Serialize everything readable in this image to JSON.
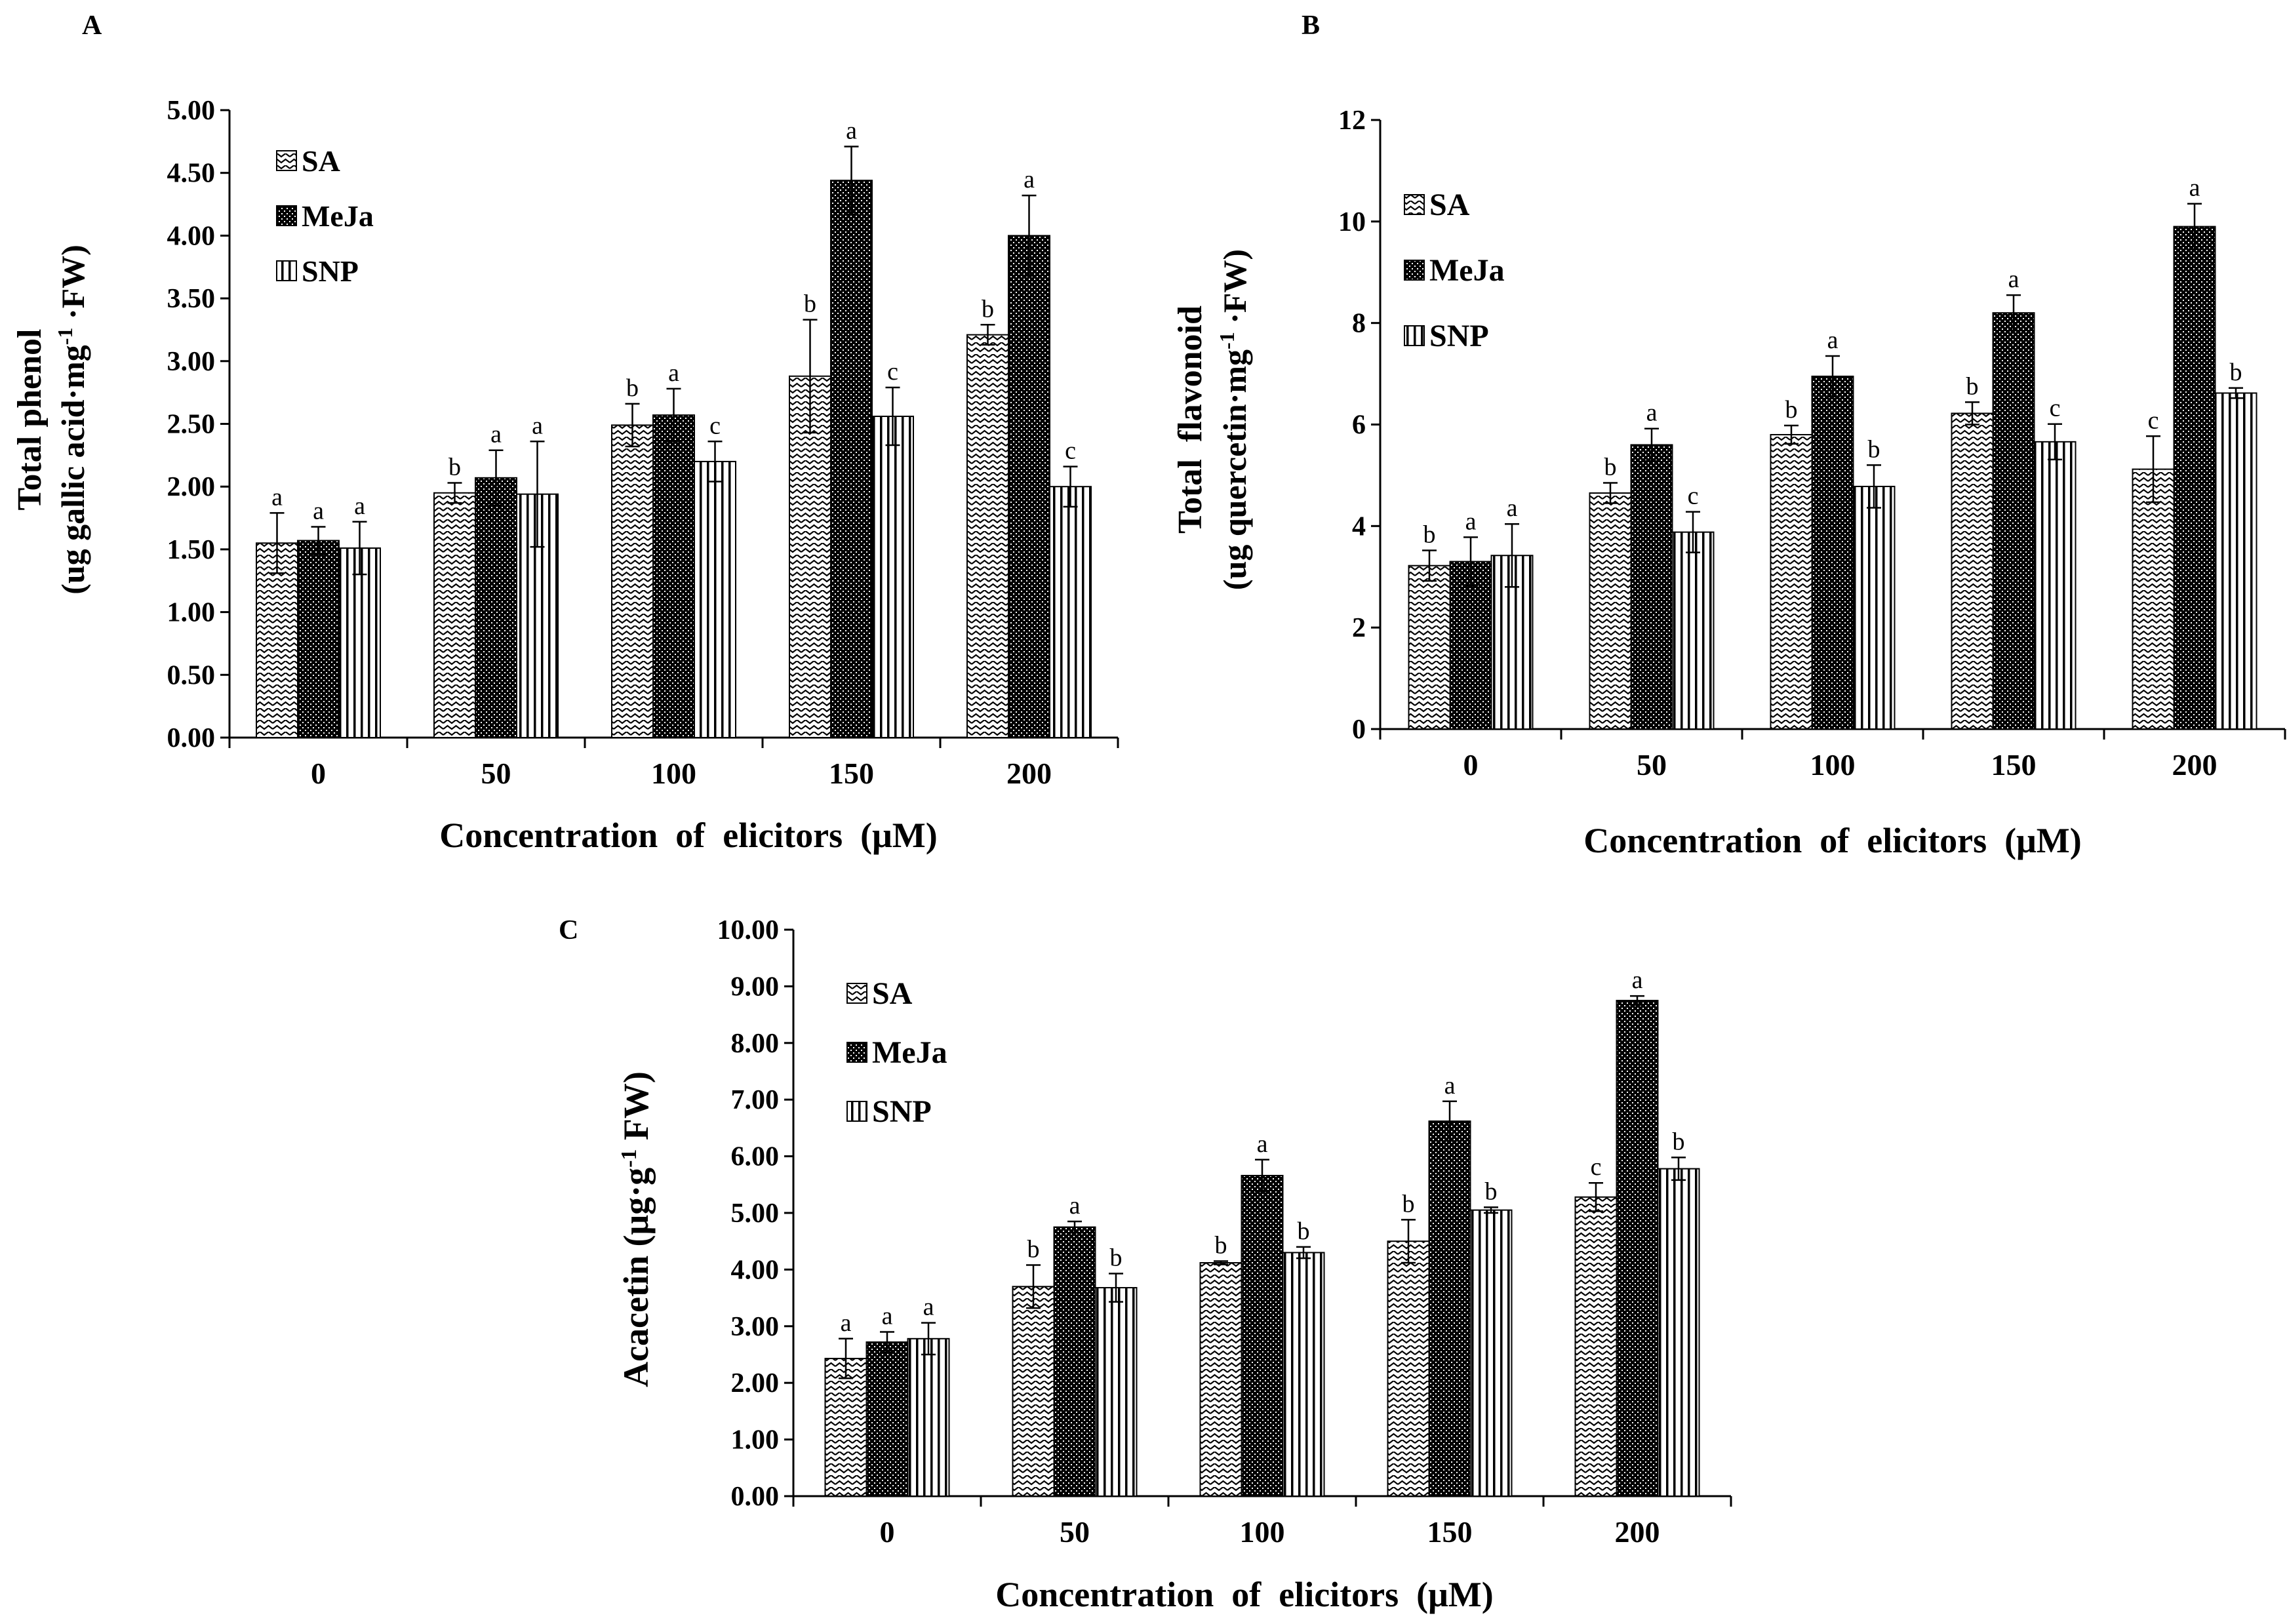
{
  "chart_data": [
    {
      "type": "bar",
      "panel_label": "A",
      "categories": [
        "0",
        "50",
        "100",
        "150",
        "200"
      ],
      "series": [
        {
          "name": "SA",
          "values": [
            1.55,
            1.95,
            2.49,
            2.88,
            3.21
          ],
          "errors": [
            0.24,
            0.08,
            0.17,
            0.45,
            0.08
          ],
          "letters": [
            "a",
            "b",
            "b",
            "b",
            "b"
          ]
        },
        {
          "name": "MeJa",
          "values": [
            1.57,
            2.07,
            2.57,
            4.44,
            4.0
          ],
          "errors": [
            0.11,
            0.22,
            0.21,
            0.27,
            0.32
          ],
          "letters": [
            "a",
            "a",
            "a",
            "a",
            "a"
          ]
        },
        {
          "name": "SNP",
          "values": [
            1.51,
            1.94,
            2.2,
            2.56,
            2.0
          ],
          "errors": [
            0.21,
            0.42,
            0.16,
            0.23,
            0.16
          ],
          "letters": [
            "a",
            "a",
            "c",
            "c",
            "c"
          ]
        }
      ],
      "yticks": [
        "0.00",
        "0.50",
        "1.00",
        "1.50",
        "2.00",
        "2.50",
        "3.00",
        "3.50",
        "4.00",
        "4.50",
        "5.00"
      ],
      "ylim": [
        0,
        5
      ],
      "ylabel_line1": "Total phenol",
      "ylabel_line2_prefix": "(ug gallic acid·mg",
      "ylabel_sup": "-1",
      "ylabel_line2_suffix": " ·FW)",
      "xlabel": "Concentration  of  elicitors  (μM)",
      "legend": [
        "SA",
        "MeJa",
        "SNP"
      ]
    },
    {
      "type": "bar",
      "panel_label": "B",
      "categories": [
        "0",
        "50",
        "100",
        "150",
        "200"
      ],
      "series": [
        {
          "name": "SA",
          "values": [
            3.22,
            4.65,
            5.8,
            6.22,
            5.12
          ],
          "errors": [
            0.3,
            0.2,
            0.18,
            0.22,
            0.65
          ],
          "letters": [
            "b",
            "b",
            "b",
            "b",
            "c"
          ]
        },
        {
          "name": "MeJa",
          "values": [
            3.3,
            5.6,
            6.95,
            8.2,
            9.9
          ],
          "errors": [
            0.48,
            0.32,
            0.4,
            0.35,
            0.45
          ],
          "letters": [
            "a",
            "a",
            "a",
            "a",
            "a"
          ]
        },
        {
          "name": "SNP",
          "values": [
            3.42,
            3.88,
            4.78,
            5.66,
            6.62
          ],
          "errors": [
            0.62,
            0.4,
            0.42,
            0.35,
            0.1
          ],
          "letters": [
            "a",
            "c",
            "b",
            "c",
            "b"
          ]
        }
      ],
      "yticks": [
        "0",
        "2",
        "4",
        "6",
        "8",
        "10",
        "12"
      ],
      "ylim": [
        0,
        12
      ],
      "ylabel_line1": "Total  flavonoid",
      "ylabel_line2_prefix": "(ug quercetin·mg",
      "ylabel_sup": "-1",
      "ylabel_line2_suffix": " ·FW)",
      "xlabel": "Concentration  of  elicitors  (μM)",
      "legend": [
        "SA",
        "MeJa",
        "SNP"
      ]
    },
    {
      "type": "bar",
      "panel_label": "C",
      "categories": [
        "0",
        "50",
        "100",
        "150",
        "200"
      ],
      "series": [
        {
          "name": "SA",
          "values": [
            2.43,
            3.7,
            4.12,
            4.5,
            5.28
          ],
          "errors": [
            0.35,
            0.38,
            0.03,
            0.38,
            0.25
          ],
          "letters": [
            "a",
            "b",
            "b",
            "b",
            "c"
          ]
        },
        {
          "name": "MeJa",
          "values": [
            2.72,
            4.75,
            5.66,
            6.62,
            8.75
          ],
          "errors": [
            0.18,
            0.1,
            0.28,
            0.35,
            0.08
          ],
          "letters": [
            "a",
            "a",
            "a",
            "a",
            "a"
          ]
        },
        {
          "name": "SNP",
          "values": [
            2.78,
            3.68,
            4.3,
            5.05,
            5.78
          ],
          "errors": [
            0.28,
            0.25,
            0.1,
            0.05,
            0.2
          ],
          "letters": [
            "a",
            "b",
            "b",
            "b",
            "b"
          ]
        }
      ],
      "yticks": [
        "0.00",
        "1.00",
        "2.00",
        "3.00",
        "4.00",
        "5.00",
        "6.00",
        "7.00",
        "8.00",
        "9.00",
        "10.00"
      ],
      "ylim": [
        0,
        10
      ],
      "ylabel_line1": "Acacetin (μg·g",
      "ylabel_sup": "-1",
      "ylabel_line1_suffix": " FW)",
      "xlabel": "Concentration  of  elicitors  (μM)",
      "legend": [
        "SA",
        "MeJa",
        "SNP"
      ]
    }
  ]
}
